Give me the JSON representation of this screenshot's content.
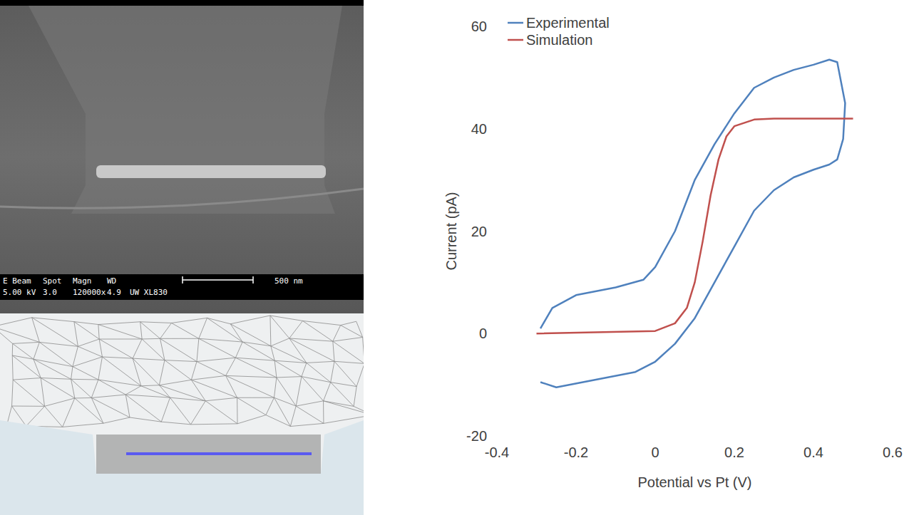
{
  "chart_data": {
    "type": "line",
    "x_label": "Potential vs Pt (V)",
    "y_label": "Current (pA)",
    "xlim": [
      -0.4,
      0.6
    ],
    "xticks": [
      -0.4,
      -0.2,
      0,
      0.2,
      0.4,
      0.6
    ],
    "ylim": [
      -20,
      60
    ],
    "yticks": [
      -20,
      0,
      20,
      40,
      60
    ],
    "grid": false,
    "legend": "upper left",
    "series": [
      {
        "name": "Experimental",
        "color": "#4f81bd",
        "x": [
          -0.29,
          -0.26,
          -0.2,
          -0.1,
          -0.03,
          0.0,
          0.05,
          0.1,
          0.15,
          0.2,
          0.25,
          0.3,
          0.35,
          0.4,
          0.44,
          0.46,
          0.48,
          0.475,
          0.46,
          0.44,
          0.4,
          0.35,
          0.3,
          0.25,
          0.2,
          0.15,
          0.1,
          0.05,
          0.0,
          -0.05,
          -0.15,
          -0.25,
          -0.29
        ],
        "values": [
          1,
          5,
          7.5,
          9,
          10.5,
          13,
          20,
          30,
          37,
          43,
          48,
          50,
          51.5,
          52.5,
          53.5,
          53,
          45,
          38,
          34,
          33,
          32,
          30.5,
          28,
          24,
          17,
          10,
          3,
          -2,
          -5.5,
          -7.5,
          -9,
          -10.5,
          -9.5
        ]
      },
      {
        "name": "Simulation",
        "color": "#c0504d",
        "x": [
          -0.3,
          0.0,
          0.05,
          0.08,
          0.1,
          0.12,
          0.14,
          0.16,
          0.18,
          0.2,
          0.25,
          0.3,
          0.5
        ],
        "values": [
          0,
          0.5,
          2,
          5,
          10,
          18,
          27,
          34,
          38.5,
          40.5,
          41.8,
          42,
          42
        ]
      }
    ]
  },
  "sem_image": {
    "header_labels": [
      "E Beam",
      "Spot",
      "Magn",
      "WD"
    ],
    "values": [
      "5.00 kV",
      "3.0",
      "120000x",
      "4.9",
      "UW XL830"
    ],
    "scale_bar": "500 nm"
  }
}
